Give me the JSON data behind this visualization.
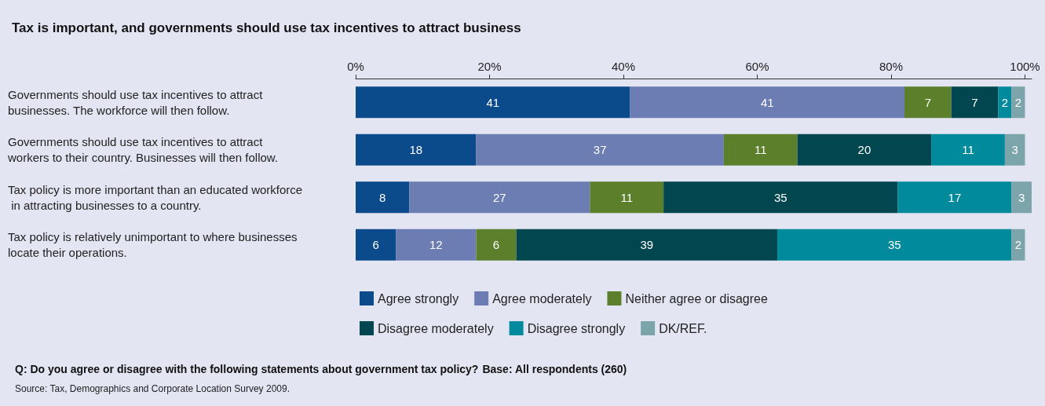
{
  "chart_data": {
    "type": "bar",
    "orientation": "horizontal",
    "stacked": true,
    "title": "Tax is important, and governments should use tax incentives to attract business",
    "categories": [
      "Governments should use tax incentives to attract businesses. The workforce will then follow.",
      "Governments should use tax incentives to attract workers to their country. Businesses will then follow.",
      "Tax policy is more important than an educated workforce in attracting businesses to a country.",
      "Tax policy is relatively unimportant to where businesses locate their operations."
    ],
    "series": [
      {
        "name": "Agree strongly",
        "color": "#0b4a8b",
        "values": [
          41,
          18,
          8,
          6
        ]
      },
      {
        "name": "Agree moderately",
        "color": "#6b7db3",
        "values": [
          41,
          37,
          27,
          12
        ]
      },
      {
        "name": "Neither agree or disagree",
        "color": "#5b7f2b",
        "values": [
          7,
          11,
          11,
          6
        ]
      },
      {
        "name": "Disagree moderately",
        "color": "#02474f",
        "values": [
          7,
          20,
          35,
          39
        ]
      },
      {
        "name": "Disagree strongly",
        "color": "#008a9b",
        "values": [
          2,
          11,
          17,
          35
        ]
      },
      {
        "name": "DK/REF.",
        "color": "#7ba4ab",
        "values": [
          2,
          3,
          3,
          2
        ]
      }
    ],
    "xlim": [
      0,
      101
    ],
    "xticks": [
      {
        "value": 0,
        "label": "0%"
      },
      {
        "value": 20,
        "label": "20%"
      },
      {
        "value": 40,
        "label": "40%"
      },
      {
        "value": 60,
        "label": "60%"
      },
      {
        "value": 80,
        "label": "80%"
      },
      {
        "value": 100,
        "label": "100%"
      }
    ],
    "data_labels": true,
    "grid": false,
    "legend": "bottom",
    "annotations": [
      "Q: Do you agree or disagree with the following statements about government tax policy?",
      "Base: All respondents (260)",
      "Source: Tax, Demographics and Corporate Location Survey 2009."
    ]
  }
}
